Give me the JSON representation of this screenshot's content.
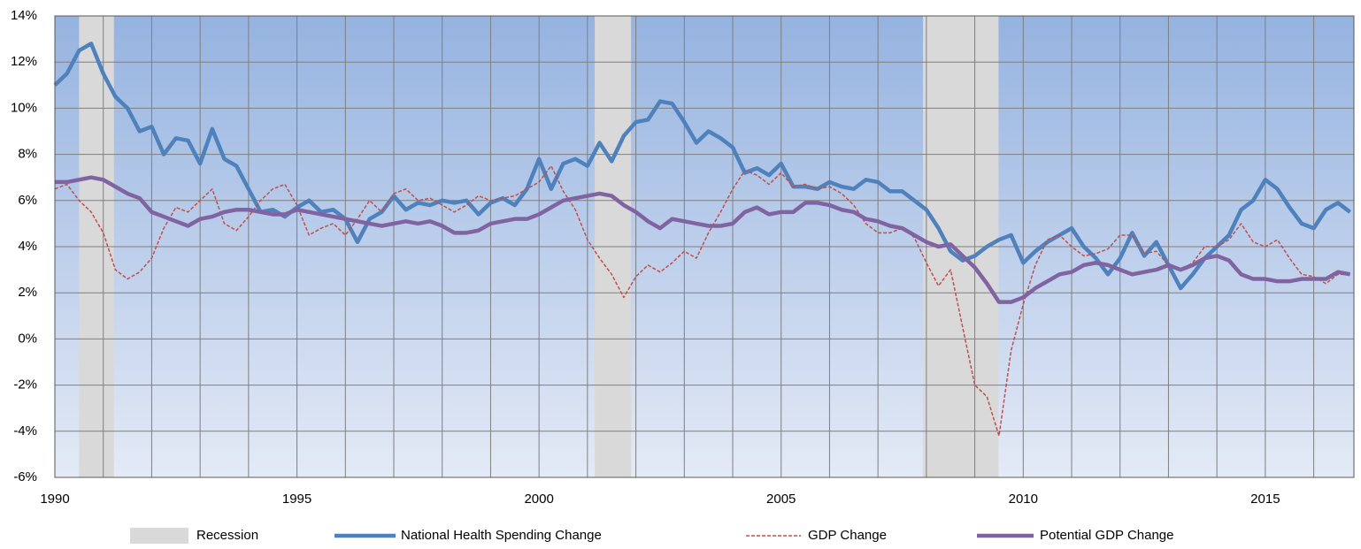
{
  "chart_data": {
    "type": "line",
    "x": [
      1990,
      1990.25,
      1990.5,
      1990.75,
      1991,
      1991.25,
      1991.5,
      1991.75,
      1992,
      1992.25,
      1992.5,
      1992.75,
      1993,
      1993.25,
      1993.5,
      1993.75,
      1994,
      1994.25,
      1994.5,
      1994.75,
      1995,
      1995.25,
      1995.5,
      1995.75,
      1996,
      1996.25,
      1996.5,
      1996.75,
      1997,
      1997.25,
      1997.5,
      1997.75,
      1998,
      1998.25,
      1998.5,
      1998.75,
      1999,
      1999.25,
      1999.5,
      1999.75,
      2000,
      2000.25,
      2000.5,
      2000.75,
      2001,
      2001.25,
      2001.5,
      2001.75,
      2002,
      2002.25,
      2002.5,
      2002.75,
      2003,
      2003.25,
      2003.5,
      2003.75,
      2004,
      2004.25,
      2004.5,
      2004.75,
      2005,
      2005.25,
      2005.5,
      2005.75,
      2006,
      2006.25,
      2006.5,
      2006.75,
      2007,
      2007.25,
      2007.5,
      2007.75,
      2008,
      2008.25,
      2008.5,
      2008.75,
      2009,
      2009.25,
      2009.5,
      2009.75,
      2010,
      2010.25,
      2010.5,
      2010.75,
      2011,
      2011.25,
      2011.5,
      2011.75,
      2012,
      2012.25,
      2012.5,
      2012.75,
      2013,
      2013.25,
      2013.5,
      2013.75,
      2014,
      2014.25,
      2014.5,
      2014.75,
      2015,
      2015.25,
      2015.5,
      2015.75,
      2016,
      2016.25,
      2016.5,
      2016.75
    ],
    "recession": {
      "name": "Recession",
      "color": "#d9d9d9",
      "ranges": [
        [
          1990.5,
          1991.22
        ],
        [
          2001.15,
          2001.9
        ],
        [
          2007.93,
          2009.49
        ]
      ]
    },
    "series": [
      {
        "name": "National Health Spending Change",
        "color": "#4f81bd",
        "width": 4.5,
        "dashed": false,
        "values": [
          11.0,
          11.5,
          12.5,
          12.8,
          11.5,
          10.5,
          10.0,
          9.0,
          9.2,
          8.0,
          8.7,
          8.6,
          7.6,
          9.1,
          7.8,
          7.5,
          6.5,
          5.5,
          5.6,
          5.3,
          5.7,
          6.0,
          5.5,
          5.6,
          5.2,
          4.2,
          5.2,
          5.5,
          6.2,
          5.6,
          5.9,
          5.8,
          6.0,
          5.9,
          6.0,
          5.4,
          5.9,
          6.1,
          5.8,
          6.5,
          7.8,
          6.5,
          7.6,
          7.8,
          7.5,
          8.5,
          7.7,
          8.8,
          9.4,
          9.5,
          10.3,
          10.2,
          9.4,
          8.5,
          9.0,
          8.7,
          8.3,
          7.2,
          7.4,
          7.1,
          7.6,
          6.6,
          6.6,
          6.5,
          6.8,
          6.6,
          6.5,
          6.9,
          6.8,
          6.4,
          6.4,
          6.0,
          5.6,
          4.8,
          3.8,
          3.4,
          3.6,
          4.0,
          4.3,
          4.5,
          3.3,
          3.8,
          4.2,
          4.5,
          4.8,
          4.0,
          3.5,
          2.8,
          3.5,
          4.6,
          3.6,
          4.2,
          3.2,
          2.2,
          2.8,
          3.5,
          4.0,
          4.5,
          5.6,
          6.0,
          6.9,
          6.5,
          5.7,
          5.0,
          4.8,
          5.6,
          5.9,
          5.5
        ]
      },
      {
        "name": "GDP Change",
        "color": "#c0504d",
        "width": 1.5,
        "dashed": true,
        "values": [
          6.5,
          6.7,
          6.0,
          5.5,
          4.6,
          3.0,
          2.6,
          2.9,
          3.5,
          4.8,
          5.7,
          5.5,
          6.0,
          6.5,
          5.0,
          4.7,
          5.3,
          6.0,
          6.5,
          6.7,
          5.8,
          4.5,
          4.8,
          5.0,
          4.5,
          5.2,
          6.0,
          5.5,
          6.3,
          6.5,
          6.0,
          6.1,
          5.8,
          5.5,
          5.8,
          6.2,
          6.0,
          6.1,
          6.2,
          6.5,
          6.8,
          7.5,
          6.4,
          5.6,
          4.3,
          3.5,
          2.8,
          1.8,
          2.7,
          3.2,
          2.9,
          3.3,
          3.8,
          3.5,
          4.6,
          5.5,
          6.5,
          7.3,
          7.1,
          6.7,
          7.2,
          6.6,
          6.7,
          6.5,
          6.6,
          6.3,
          5.8,
          5.0,
          4.6,
          4.6,
          4.8,
          4.4,
          3.3,
          2.3,
          3.0,
          0.5,
          -2.0,
          -2.5,
          -4.2,
          -0.5,
          1.5,
          3.2,
          4.3,
          4.5,
          4.0,
          3.6,
          3.7,
          3.9,
          4.5,
          4.5,
          3.7,
          3.8,
          3.2,
          3.0,
          3.3,
          4.0,
          4.0,
          4.3,
          5.0,
          4.2,
          4.0,
          4.3,
          3.5,
          2.8,
          2.7,
          2.4,
          2.8,
          2.8
        ]
      },
      {
        "name": "Potential GDP Change",
        "color": "#8064a2",
        "width": 4.5,
        "dashed": false,
        "values": [
          6.8,
          6.8,
          6.9,
          7.0,
          6.9,
          6.6,
          6.3,
          6.1,
          5.5,
          5.3,
          5.1,
          4.9,
          5.2,
          5.3,
          5.5,
          5.6,
          5.6,
          5.5,
          5.4,
          5.4,
          5.6,
          5.5,
          5.4,
          5.3,
          5.2,
          5.1,
          5.0,
          4.9,
          5.0,
          5.1,
          5.0,
          5.1,
          4.9,
          4.6,
          4.6,
          4.7,
          5.0,
          5.1,
          5.2,
          5.2,
          5.4,
          5.7,
          6.0,
          6.1,
          6.2,
          6.3,
          6.2,
          5.8,
          5.5,
          5.1,
          4.8,
          5.2,
          5.1,
          5.0,
          4.9,
          4.9,
          5.0,
          5.5,
          5.7,
          5.4,
          5.5,
          5.5,
          5.9,
          5.9,
          5.8,
          5.6,
          5.5,
          5.2,
          5.1,
          4.9,
          4.8,
          4.5,
          4.2,
          4.0,
          4.1,
          3.6,
          3.1,
          2.4,
          1.6,
          1.6,
          1.8,
          2.2,
          2.5,
          2.8,
          2.9,
          3.2,
          3.3,
          3.2,
          3.0,
          2.8,
          2.9,
          3.0,
          3.2,
          3.0,
          3.2,
          3.5,
          3.6,
          3.4,
          2.8,
          2.6,
          2.6,
          2.5,
          2.5,
          2.6,
          2.6,
          2.6,
          2.9,
          2.8
        ]
      }
    ],
    "xlim": [
      1990,
      2016.83
    ],
    "xticks": [
      1990,
      1995,
      2000,
      2005,
      2010,
      2015
    ],
    "x_minor_ticks": [
      1991,
      1992,
      1993,
      1994,
      1996,
      1997,
      1998,
      1999,
      2001,
      2002,
      2003,
      2004,
      2006,
      2007,
      2008,
      2009,
      2011,
      2012,
      2013,
      2014,
      2016
    ],
    "ylim": [
      -6,
      14
    ],
    "yticks": [
      {
        "value": -6,
        "label": "-6%"
      },
      {
        "value": -4,
        "label": "-4%"
      },
      {
        "value": -2,
        "label": "-2%"
      },
      {
        "value": 0,
        "label": "0%"
      },
      {
        "value": 2,
        "label": "2%"
      },
      {
        "value": 4,
        "label": "4%"
      },
      {
        "value": 6,
        "label": "6%"
      },
      {
        "value": 8,
        "label": "8%"
      },
      {
        "value": 10,
        "label": "10%"
      },
      {
        "value": 12,
        "label": "12%"
      },
      {
        "value": 14,
        "label": "14%"
      }
    ],
    "grid": true
  }
}
